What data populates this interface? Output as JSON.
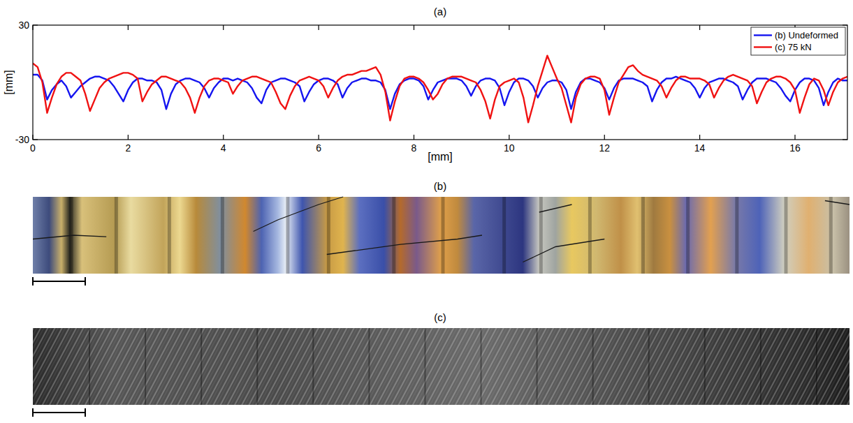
{
  "chart_data": {
    "type": "line",
    "title": "(a)",
    "x_label": "[mm]",
    "y_label": "[mm]",
    "xlim": [
      0,
      17.1
    ],
    "ylim": [
      -30,
      30
    ],
    "xticks": [
      0,
      2,
      4,
      6,
      8,
      10,
      12,
      14,
      16
    ],
    "yticks": [
      -30,
      30
    ],
    "grid": false,
    "legend": "upper right",
    "x": [
      0,
      0.1,
      0.2,
      0.3,
      0.4,
      0.5,
      0.6,
      0.7,
      0.8,
      0.9,
      1,
      1.1,
      1.2,
      1.3,
      1.4,
      1.5,
      1.6,
      1.7,
      1.8,
      1.9,
      2,
      2.1,
      2.2,
      2.3,
      2.4,
      2.5,
      2.6,
      2.7,
      2.8,
      2.9,
      3,
      3.1,
      3.2,
      3.3,
      3.4,
      3.5,
      3.6,
      3.7,
      3.8,
      3.9,
      4,
      4.1,
      4.2,
      4.3,
      4.4,
      4.5,
      4.6,
      4.7,
      4.8,
      4.9,
      5,
      5.1,
      5.2,
      5.3,
      5.4,
      5.5,
      5.6,
      5.7,
      5.8,
      5.9,
      6,
      6.1,
      6.2,
      6.3,
      6.4,
      6.5,
      6.6,
      6.7,
      6.8,
      6.9,
      7,
      7.1,
      7.2,
      7.3,
      7.4,
      7.5,
      7.6,
      7.7,
      7.8,
      7.9,
      8,
      8.1,
      8.2,
      8.3,
      8.4,
      8.5,
      8.6,
      8.7,
      8.8,
      8.9,
      9,
      9.1,
      9.2,
      9.3,
      9.4,
      9.5,
      9.6,
      9.7,
      9.8,
      9.9,
      10,
      10.1,
      10.2,
      10.3,
      10.4,
      10.5,
      10.6,
      10.7,
      10.8,
      10.9,
      11,
      11.1,
      11.2,
      11.3,
      11.4,
      11.5,
      11.6,
      11.7,
      11.8,
      11.9,
      12,
      12.1,
      12.2,
      12.3,
      12.4,
      12.5,
      12.6,
      12.7,
      12.8,
      12.9,
      13,
      13.1,
      13.2,
      13.3,
      13.4,
      13.5,
      13.6,
      13.7,
      13.8,
      13.9,
      14,
      14.1,
      14.2,
      14.3,
      14.4,
      14.5,
      14.6,
      14.7,
      14.8,
      14.9,
      15,
      15.1,
      15.2,
      15.3,
      15.4,
      15.5,
      15.6,
      15.7,
      15.8,
      15.9,
      16,
      16.1,
      16.2,
      16.3,
      16.4,
      16.5,
      16.6,
      16.7,
      16.8,
      16.9,
      17,
      17.1
    ],
    "series": [
      {
        "name": "(b) Undeformed",
        "color": "#1515f0",
        "values": [
          4,
          4,
          1,
          -9,
          -4,
          -1,
          1,
          -2,
          -8,
          -5,
          -2,
          0,
          2,
          3,
          3,
          2,
          1,
          -2,
          -6,
          -10,
          -4,
          0,
          2,
          2,
          1,
          1,
          0,
          -4,
          -14,
          -6,
          -1,
          1,
          2,
          2,
          1,
          0,
          -3,
          -8,
          -3,
          0,
          2,
          2,
          1,
          2,
          1,
          0,
          -3,
          -8,
          -11,
          -4,
          0,
          1,
          2,
          2,
          1,
          0,
          -2,
          -10,
          -5,
          -1,
          1,
          2,
          2,
          1,
          -1,
          -8,
          -3,
          0,
          1,
          2,
          2,
          1,
          1,
          0,
          -4,
          -14,
          -6,
          -1,
          1,
          2,
          2,
          1,
          -2,
          -9,
          -4,
          0,
          1,
          2,
          2,
          2,
          1,
          -2,
          -7,
          -2,
          1,
          2,
          2,
          1,
          -3,
          -12,
          -5,
          0,
          2,
          2,
          1,
          -2,
          -8,
          -3,
          0,
          1,
          1,
          0,
          -4,
          -14,
          -5,
          0,
          2,
          2,
          1,
          0,
          -3,
          -9,
          -3,
          1,
          2,
          2,
          2,
          1,
          0,
          -2,
          -10,
          -4,
          0,
          2,
          2,
          3,
          2,
          1,
          0,
          -3,
          -8,
          -3,
          0,
          1,
          2,
          2,
          1,
          0,
          -2,
          -9,
          -4,
          0,
          2,
          2,
          2,
          1,
          0,
          -3,
          -7,
          -10,
          -4,
          0,
          2,
          2,
          1,
          -3,
          -12,
          -5,
          0,
          2,
          1,
          1
        ]
      },
      {
        "name": "(c) 75 kN",
        "color": "#f01212",
        "values": [
          10,
          8,
          0,
          -16,
          -8,
          -1,
          3,
          5,
          5,
          3,
          1,
          -6,
          -15,
          -9,
          -3,
          0,
          2,
          3,
          4,
          5,
          5,
          4,
          2,
          -10,
          -5,
          -1,
          1,
          3,
          3,
          2,
          1,
          0,
          -3,
          -8,
          -16,
          -8,
          -2,
          1,
          2,
          2,
          1,
          0,
          -6,
          -2,
          1,
          2,
          3,
          3,
          2,
          1,
          0,
          -5,
          -11,
          -14,
          -7,
          -2,
          1,
          2,
          3,
          2,
          1,
          -2,
          -8,
          -3,
          1,
          3,
          4,
          4,
          5,
          6,
          6,
          7,
          8,
          4,
          -5,
          -20,
          -10,
          -2,
          2,
          3,
          3,
          2,
          0,
          -4,
          -9,
          -6,
          -1,
          2,
          3,
          3,
          3,
          2,
          1,
          0,
          -4,
          -10,
          -19,
          -9,
          -2,
          0,
          1,
          2,
          0,
          -8,
          -21,
          -12,
          -2,
          6,
          14,
          8,
          2,
          -3,
          -12,
          -21,
          -8,
          -1,
          2,
          3,
          3,
          2,
          -4,
          -17,
          -8,
          0,
          4,
          8,
          9,
          6,
          4,
          3,
          2,
          1,
          -2,
          -8,
          -3,
          1,
          3,
          3,
          2,
          2,
          2,
          1,
          -1,
          -8,
          -3,
          1,
          3,
          4,
          3,
          2,
          1,
          -2,
          -11,
          -5,
          0,
          2,
          3,
          3,
          2,
          0,
          -4,
          -16,
          -8,
          -1,
          2,
          1,
          -4,
          -12,
          -5,
          0,
          2,
          3
        ]
      }
    ]
  },
  "images": [
    {
      "title": "(b)"
    },
    {
      "title": "(c)"
    }
  ]
}
